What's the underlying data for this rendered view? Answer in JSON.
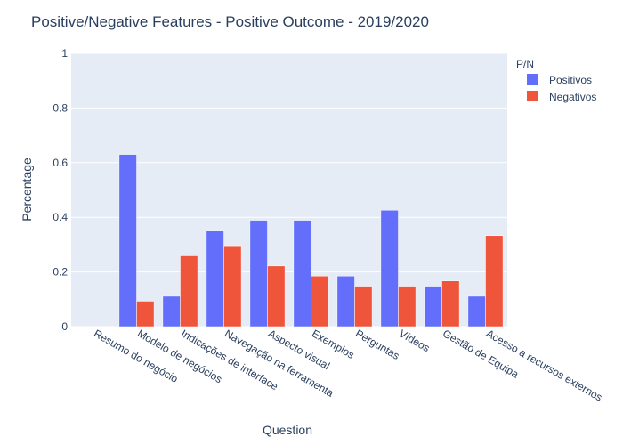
{
  "chart_data": {
    "type": "bar",
    "title": "Positive/Negative Features - Positive Outcome  - 2019/2020",
    "xlabel": "Question",
    "ylabel": "Percentage",
    "ylim": [
      0,
      1
    ],
    "yticks": [
      "0",
      "0.2",
      "0.4",
      "0.6",
      "0.8",
      "1"
    ],
    "ytick_values": [
      0,
      0.2,
      0.4,
      0.6,
      0.8,
      1
    ],
    "categories": [
      "Resumo do negócio",
      "Modelo de negócios",
      "Indicações de interface",
      "Navegação na ferramenta",
      "Aspecto visual",
      "Exemplos",
      "Perguntas",
      "Vídeos",
      "Gestão de Equipa",
      "Acesso a recursos externos"
    ],
    "series": [
      {
        "name": "Positivos",
        "color": "#636efa",
        "values": [
          0,
          0.63,
          0.111,
          0.352,
          0.389,
          0.389,
          0.185,
          0.426,
          0.148,
          0.111
        ]
      },
      {
        "name": "Negativos",
        "color": "#ef553b",
        "values": [
          0,
          0.093,
          0.259,
          0.296,
          0.222,
          0.185,
          0.148,
          0.148,
          0.167,
          0.333
        ]
      }
    ],
    "legend_title": "P/N",
    "legend_position": "top-right",
    "grid": true,
    "plot_background": "#e5ecf6"
  }
}
